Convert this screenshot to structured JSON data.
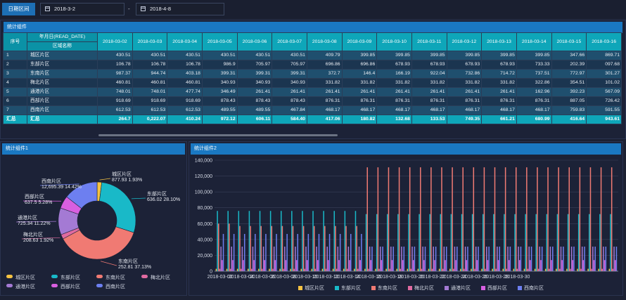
{
  "filter": {
    "label": "日期区间",
    "start": "2018-3-2",
    "end": "2018-4-8",
    "separator": "-"
  },
  "table_panel": {
    "title": "统计组件",
    "col_index": "序号",
    "col_date_header": "年月日(READ_DATE)",
    "col_area_header": "区域名称",
    "dates": [
      "2018-03-02",
      "2018-03-03",
      "2018-03-04",
      "2018-03-05",
      "2018-03-06",
      "2018-03-07",
      "2018-03-08",
      "2018-03-09",
      "2018-03-10",
      "2018-03-11",
      "2018-03-12",
      "2018-03-13",
      "2018-03-14",
      "2018-03-15",
      "2018-03-16"
    ],
    "rows": [
      {
        "idx": "1",
        "area": "城区片区",
        "values": [
          "430.51",
          "430.51",
          "430.51",
          "430.51",
          "430.51",
          "430.51",
          "409.79",
          "399.85",
          "399.85",
          "399.85",
          "399.85",
          "399.85",
          "399.85",
          "347.66",
          "869.71"
        ]
      },
      {
        "idx": "2",
        "area": "东部片区",
        "values": [
          "106.78",
          "106.78",
          "106.78",
          "986.9",
          "705.97",
          "705.97",
          "696.86",
          "696.86",
          "678.93",
          "678.93",
          "678.93",
          "678.93",
          "733.33",
          "202.39",
          "097.68"
        ]
      },
      {
        "idx": "3",
        "area": "东南片区",
        "values": [
          "987.37",
          "944.74",
          "403.18",
          "399.31",
          "399.31",
          "399.31",
          "372.7",
          "146.4",
          "166.19",
          "922.04",
          "732.86",
          "714.72",
          "737.51",
          "772.97",
          "301.27"
        ]
      },
      {
        "idx": "4",
        "area": "梅北片区",
        "values": [
          "460.81",
          "460.81",
          "460.81",
          "340.93",
          "340.93",
          "340.93",
          "331.82",
          "331.82",
          "331.82",
          "331.82",
          "331.82",
          "331.82",
          "322.86",
          "354.51",
          "101.02"
        ]
      },
      {
        "idx": "5",
        "area": "通港片区",
        "values": [
          "748.01",
          "748.01",
          "477.74",
          "346.49",
          "261.41",
          "261.41",
          "261.41",
          "261.41",
          "261.41",
          "261.41",
          "261.41",
          "261.41",
          "162.96",
          "392.23",
          "567.09"
        ]
      },
      {
        "idx": "6",
        "area": "西部片区",
        "values": [
          "918.69",
          "918.69",
          "918.69",
          "878.43",
          "878.43",
          "878.43",
          "876.31",
          "876.31",
          "876.31",
          "876.31",
          "876.31",
          "876.31",
          "876.31",
          "887.05",
          "726.42"
        ]
      },
      {
        "idx": "7",
        "area": "西南片区",
        "values": [
          "612.53",
          "612.53",
          "612.53",
          "489.55",
          "489.55",
          "467.84",
          "468.17",
          "468.17",
          "468.17",
          "468.17",
          "468.17",
          "468.17",
          "468.17",
          "759.83",
          "591.55"
        ]
      }
    ],
    "total": {
      "idx": "汇总",
      "area": "汇总",
      "values": [
        "264.7",
        "0,222.07",
        "410.24",
        "972.12",
        "606.11",
        "584.40",
        "417.06",
        "180.82",
        "132.68",
        "133.53",
        "749.35",
        "661.21",
        "680.99",
        "416.64",
        "943.61"
      ]
    }
  },
  "pie_panel": {
    "title": "统计组件1",
    "slices": [
      {
        "name": "城区片区",
        "value": "877.93",
        "pct": "1.93%",
        "color": "#f5c242"
      },
      {
        "name": "东部片区",
        "value": "636.02",
        "pct": "28.10%",
        "color": "#19b9c8"
      },
      {
        "name": "东南片区",
        "value": "252.81",
        "pct": "37.13%",
        "color": "#f07a73"
      },
      {
        "name": "梅北片区",
        "value": "208.63",
        "pct": "1.92%",
        "color": "#e06aa0"
      },
      {
        "name": "通港片区",
        "value": "725.34",
        "pct": "11.22%",
        "color": "#a47ad4"
      },
      {
        "name": "西部片区",
        "value": "637.5",
        "pct": "5.28%",
        "color": "#d85fe0"
      },
      {
        "name": "西南片区",
        "value": "12,695.39",
        "pct": "14.42%",
        "color": "#6d7ff0"
      }
    ]
  },
  "bar_panel": {
    "title": "统计组件2",
    "chart_data": {
      "type": "bar",
      "ylim": [
        0,
        140000
      ],
      "yticks": [
        "0",
        "20,000",
        "40,000",
        "60,000",
        "80,000",
        "100,000",
        "120,000",
        "140,000"
      ],
      "xtick_labels": [
        "2018-03-02",
        "2018-03-04",
        "2018-03-06",
        "2018-03-08",
        "2018-03-10",
        "2018-03-12",
        "2018-03-14",
        "2018-03-16",
        "2018-03-18",
        "2018-03-20",
        "2018-03-22",
        "2018-03-24",
        "2018-03-26",
        "2018-03-28",
        "2018-03-30"
      ],
      "num_days": 38,
      "series": [
        {
          "name": "城区片区",
          "color": "#f5c242",
          "values": [
            3000,
            3000,
            3000,
            3000,
            3000,
            3000,
            3000,
            3000,
            3000,
            3000,
            3000,
            3000,
            3000,
            3000,
            3000,
            3000,
            3000,
            3000,
            3000,
            3000,
            3000,
            3000,
            3000,
            3000,
            3000,
            3000,
            3000,
            3000,
            3000,
            3000,
            3000,
            3000,
            3000,
            3000,
            3000,
            3000,
            3000,
            3000
          ]
        },
        {
          "name": "东部片区",
          "color": "#19b9c8",
          "values": [
            76000,
            76000,
            76000,
            76000,
            76000,
            76000,
            76000,
            76000,
            76000,
            76000,
            76000,
            76000,
            76000,
            76000,
            72000,
            72000,
            72000,
            72000,
            72000,
            72000,
            72000,
            72000,
            72000,
            72000,
            72000,
            72000,
            72000,
            72000,
            72000,
            72000,
            72000,
            72000,
            72000,
            72000,
            72000,
            72000,
            72000,
            72000
          ]
        },
        {
          "name": "东南片区",
          "color": "#f07a73",
          "values": [
            60000,
            60000,
            57000,
            57000,
            57000,
            57000,
            57000,
            57000,
            57000,
            57000,
            57000,
            57000,
            57000,
            57000,
            131000,
            131000,
            131000,
            131000,
            131000,
            131000,
            131000,
            131000,
            131000,
            131000,
            131000,
            131000,
            131000,
            131000,
            131000,
            131000,
            131000,
            131000,
            131000,
            131000,
            131000,
            131000,
            131000,
            131000
          ]
        },
        {
          "name": "梅北片区",
          "color": "#e06aa0",
          "values": [
            3000,
            3000,
            3000,
            3000,
            3000,
            3000,
            3000,
            3000,
            3000,
            3000,
            3000,
            3000,
            3000,
            3000,
            3000,
            3000,
            3000,
            3000,
            3000,
            3000,
            3000,
            3000,
            3000,
            3000,
            3000,
            3000,
            3000,
            3000,
            3000,
            3000,
            3000,
            3000,
            3000,
            3000,
            3000,
            3000,
            3000,
            3000
          ]
        },
        {
          "name": "通港片区",
          "color": "#a47ad4",
          "values": [
            31000,
            31000,
            31000,
            31000,
            31000,
            31000,
            31000,
            31000,
            31000,
            31000,
            31000,
            31000,
            31000,
            31000,
            31000,
            31000,
            31000,
            31000,
            31000,
            31000,
            31000,
            31000,
            31000,
            31000,
            31000,
            31000,
            31000,
            31000,
            31000,
            31000,
            31000,
            31000,
            31000,
            31000,
            31000,
            31000,
            31000,
            31000
          ]
        },
        {
          "name": "西部片区",
          "color": "#d85fe0",
          "values": [
            14000,
            14000,
            14000,
            14000,
            14000,
            14000,
            14000,
            14000,
            14000,
            14000,
            14000,
            14000,
            14000,
            14000,
            14000,
            14000,
            14000,
            14000,
            14000,
            14000,
            14000,
            14000,
            14000,
            14000,
            14000,
            14000,
            14000,
            14000,
            14000,
            14000,
            14000,
            14000,
            14000,
            14000,
            14000,
            14000,
            14000,
            14000
          ]
        },
        {
          "name": "西南片区",
          "color": "#6d7ff0",
          "values": [
            47000,
            47000,
            47000,
            47000,
            47000,
            47000,
            47000,
            47000,
            47000,
            47000,
            47000,
            47000,
            47000,
            47000,
            31000,
            31000,
            31000,
            31000,
            31000,
            31000,
            31000,
            31000,
            31000,
            31000,
            31000,
            31000,
            31000,
            31000,
            31000,
            31000,
            31000,
            31000,
            31000,
            31000,
            31000,
            31000,
            31000,
            31000
          ]
        }
      ]
    }
  }
}
